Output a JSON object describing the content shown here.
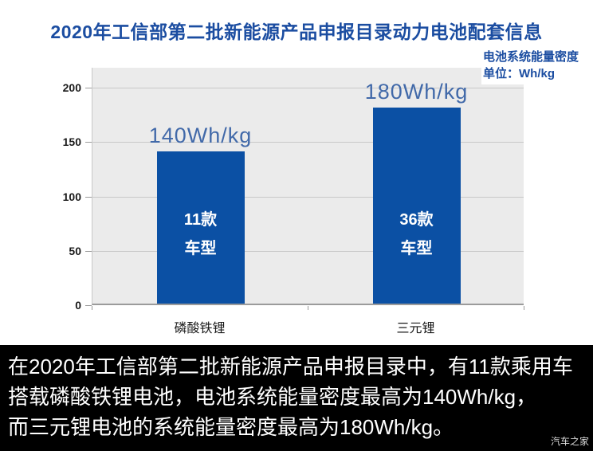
{
  "title": "2020年工信部第二批新能源产品申报目录动力电池配套信息",
  "unit_note": {
    "line1": "电池系统能量密度",
    "line2": "单位：Wh/kg"
  },
  "chart_data": {
    "type": "bar",
    "categories": [
      "磷酸铁锂",
      "三元锂"
    ],
    "values": [
      140,
      180
    ],
    "value_labels": [
      "140Wh/kg",
      "180Wh/kg"
    ],
    "bar_annotations": [
      [
        "11款",
        "车型"
      ],
      [
        "36款",
        "车型"
      ]
    ],
    "title": "2020年工信部第二批新能源产品申报目录动力电池配套信息",
    "xlabel": "",
    "ylabel": "Wh/kg",
    "ylim": [
      0,
      200
    ],
    "yticks": [
      0,
      50,
      100,
      150,
      200
    ],
    "grid": true,
    "legend": "none",
    "plot_background": "#ebebeb"
  },
  "caption": {
    "lines": [
      "在2020年工信部第二批新能源产品申报目录中，有11款乘用车",
      "搭载磷酸铁锂电池，电池系统能量密度最高为140Wh/kg，",
      "而三元锂电池的系统能量密度最高为180Wh/kg。"
    ]
  },
  "watermark": "汽车之家",
  "colors": {
    "title_blue": "#1b4da1",
    "bar_blue": "#0b50a4",
    "value_label_blue": "#4169a9",
    "banner_black": "#000000",
    "banner_text": "#ffffff"
  }
}
